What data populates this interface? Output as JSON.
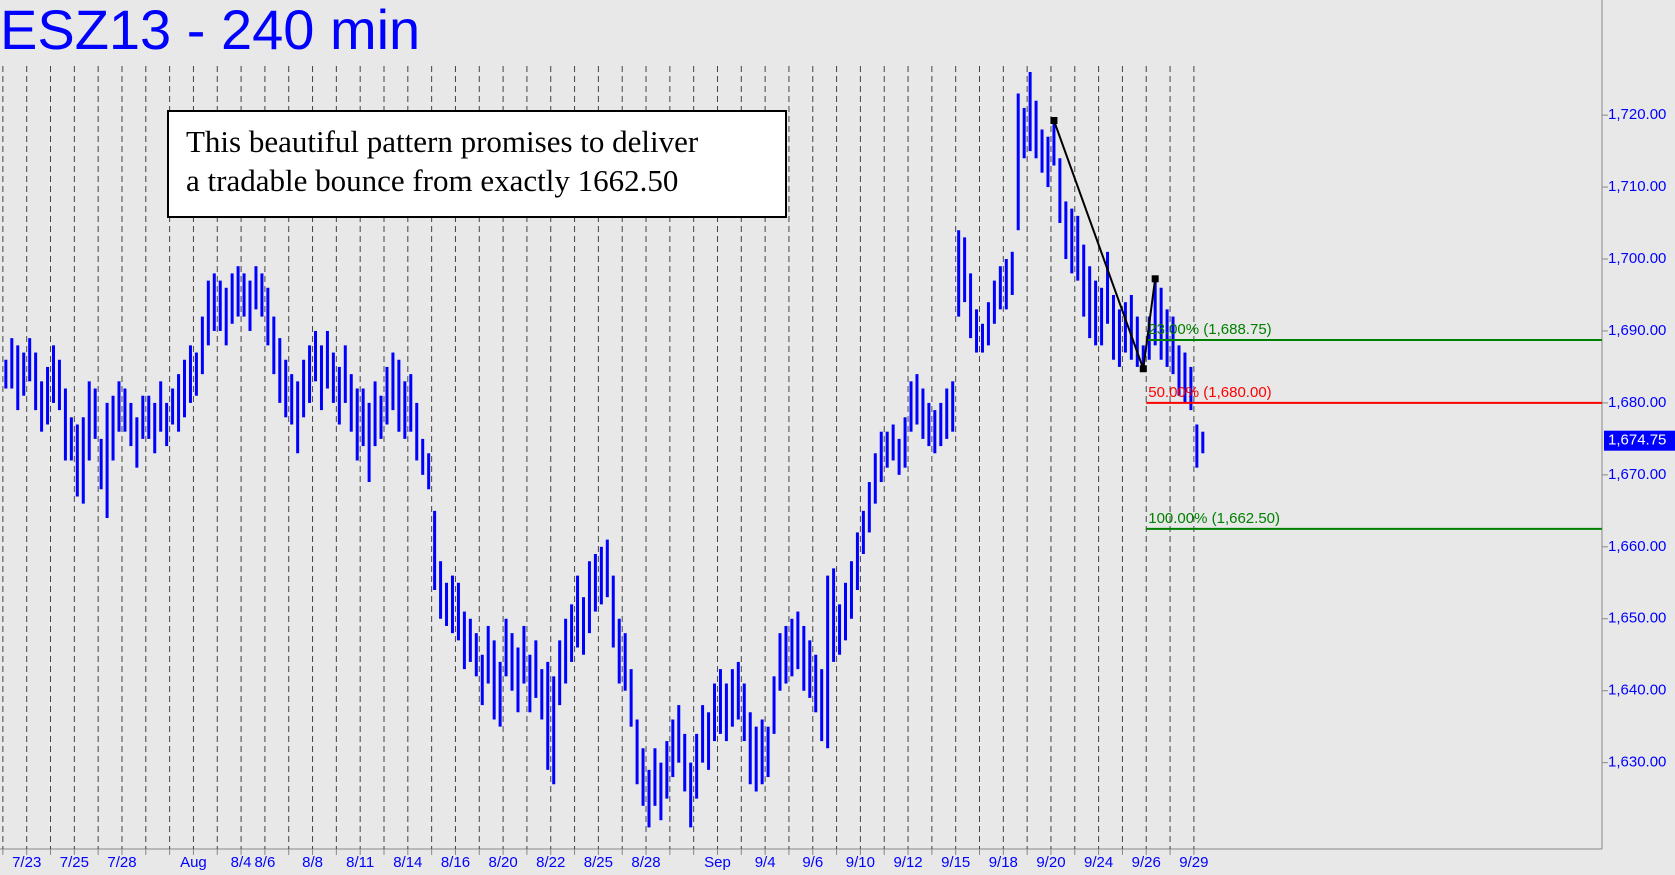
{
  "chart_data": {
    "type": "ohlc",
    "title": "ESZ13 - 240 min",
    "annotation": [
      "This beautiful pattern promises to deliver",
      "a tradable bounce from exactly 1662.50"
    ],
    "categories": [
      null,
      "7/23",
      null,
      "7/25",
      null,
      "7/28",
      null,
      null,
      "Aug",
      null,
      "8/4",
      "8/6",
      null,
      "8/8",
      null,
      "8/11",
      null,
      "8/14",
      null,
      "8/16",
      null,
      "8/20",
      null,
      "8/22",
      null,
      "8/25",
      null,
      "8/28",
      null,
      null,
      "Sep",
      null,
      "9/4",
      null,
      "9/6",
      null,
      "9/10",
      null,
      "9/12",
      null,
      "9/15",
      null,
      "9/18",
      null,
      "9/20",
      null,
      "9/24",
      null,
      "9/26",
      null,
      "9/29"
    ],
    "high": [
      [
        1686,
        1689,
        1688,
        1687
      ],
      [
        1689,
        1687,
        1683,
        1685
      ],
      [
        1688,
        1686,
        1682,
        1678
      ],
      [
        1677,
        1678,
        1683,
        1682
      ],
      [
        1675,
        1680,
        1681,
        1683
      ],
      [
        1682,
        1680,
        1678,
        1681
      ],
      [
        1681,
        1680,
        1683,
        1680
      ],
      [
        1682,
        1684,
        1686,
        1688
      ],
      [
        1687,
        1692,
        1697,
        1698
      ],
      [
        1697,
        1696,
        1698,
        1699
      ],
      [
        1698,
        1697,
        1699,
        1698
      ],
      [
        1696,
        1692,
        1689,
        1686
      ],
      [
        1684,
        1683,
        1686,
        1688
      ],
      [
        1690,
        1688,
        1690,
        1687
      ],
      [
        1685,
        1688,
        1684,
        1682
      ],
      [
        1682,
        1680,
        1683,
        1681
      ],
      [
        1685,
        1687,
        1686,
        1683
      ],
      [
        1684,
        1680,
        1675,
        1673
      ],
      [
        1665,
        1658,
        1655,
        1656
      ],
      [
        1655,
        1651,
        1650,
        1648
      ],
      [
        1645,
        1649,
        1647,
        1644
      ],
      [
        1650,
        1648,
        1646,
        1649
      ],
      [
        1645,
        1647,
        1643,
        1644
      ],
      [
        1642,
        1647,
        1650,
        1652
      ],
      [
        1656,
        1653,
        1658,
        1659
      ],
      [
        1660,
        1661,
        1656,
        1650
      ],
      [
        1648,
        1643,
        1636,
        1632
      ],
      [
        1629,
        1632,
        1630,
        1633
      ],
      [
        1636,
        1638,
        1634,
        1630
      ],
      [
        1634,
        1638,
        1637,
        1641
      ],
      [
        1643,
        1641,
        1643,
        1644
      ],
      [
        1641,
        1637,
        1635,
        1636
      ],
      [
        1635,
        1642,
        1648,
        1649
      ],
      [
        1650,
        1651,
        1649,
        1647
      ],
      [
        1645,
        1643,
        1656,
        1657
      ],
      [
        1652,
        1655,
        1658,
        1662
      ],
      [
        1665,
        1669,
        1673,
        1676
      ],
      [
        1676,
        1677,
        1675,
        1678
      ],
      [
        1683,
        1684,
        1682,
        1680
      ],
      [
        1679,
        1680,
        1682,
        1683
      ],
      [
        1704,
        1703,
        1698,
        1693
      ],
      [
        1691,
        1694,
        1697,
        1699
      ],
      [
        1700,
        1701,
        1723,
        1721
      ],
      [
        1726,
        1722,
        1718,
        1717
      ],
      [
        1719.25,
        1714,
        1708,
        1707
      ],
      [
        1706,
        1702,
        1699,
        1697
      ],
      [
        1696,
        1701,
        1695,
        1693
      ],
      [
        1694,
        1695,
        1692,
        1688
      ],
      [
        1692,
        1697.25,
        1696,
        1693
      ],
      [
        1692,
        1688,
        1687,
        1685
      ],
      [
        1677,
        1676
      ]
    ],
    "low": [
      [
        1682,
        1682,
        1679,
        1681
      ],
      [
        1683,
        1679,
        1676,
        1677
      ],
      [
        1680,
        1679,
        1672,
        1672
      ],
      [
        1667,
        1666,
        1672,
        1675
      ],
      [
        1668,
        1664,
        1672,
        1676
      ],
      [
        1676,
        1674,
        1671,
        1675
      ],
      [
        1675,
        1673,
        1676,
        1674
      ],
      [
        1677,
        1676,
        1678,
        1680
      ],
      [
        1681,
        1684,
        1688,
        1690
      ],
      [
        1690,
        1688,
        1691,
        1692
      ],
      [
        1692,
        1690,
        1693,
        1692
      ],
      [
        1688,
        1684,
        1680,
        1678
      ],
      [
        1677,
        1673,
        1678,
        1680
      ],
      [
        1683,
        1679,
        1682,
        1680
      ],
      [
        1677,
        1680,
        1676,
        1672
      ],
      [
        1674,
        1669,
        1674,
        1675
      ],
      [
        1677,
        1679,
        1676,
        1675
      ],
      [
        1676,
        1672,
        1670,
        1668
      ],
      [
        1654,
        1650,
        1649,
        1648
      ],
      [
        1647,
        1643,
        1644,
        1642
      ],
      [
        1638,
        1641,
        1636,
        1635
      ],
      [
        1642,
        1640,
        1637,
        1641
      ],
      [
        1637,
        1639,
        1636,
        1629
      ],
      [
        1627,
        1638,
        1641,
        1644
      ],
      [
        1646,
        1645,
        1648,
        1651
      ],
      [
        1652,
        1653,
        1646,
        1641
      ],
      [
        1640,
        1635,
        1627,
        1624
      ],
      [
        1621,
        1624,
        1622,
        1625
      ],
      [
        1628,
        1630,
        1626,
        1621
      ],
      [
        1625,
        1630,
        1629,
        1633
      ],
      [
        1634,
        1633,
        1635,
        1636
      ],
      [
        1633,
        1627,
        1626,
        1627
      ],
      [
        1628,
        1634,
        1640,
        1641
      ],
      [
        1642,
        1643,
        1640,
        1639
      ],
      [
        1637,
        1633,
        1632,
        1644
      ],
      [
        1645,
        1647,
        1650,
        1654
      ],
      [
        1659,
        1662,
        1666,
        1669
      ],
      [
        1671,
        1672,
        1670,
        1671
      ],
      [
        1676,
        1677,
        1675,
        1674
      ],
      [
        1673,
        1674,
        1675,
        1676
      ],
      [
        1692,
        1694,
        1689,
        1687
      ],
      [
        1687,
        1688,
        1691,
        1693
      ],
      [
        1693,
        1695,
        1704,
        1714
      ],
      [
        1715,
        1714,
        1712,
        1710
      ],
      [
        1713,
        1705,
        1700,
        1698
      ],
      [
        1697,
        1692,
        1689,
        1688
      ],
      [
        1688,
        1691,
        1686,
        1685
      ],
      [
        1687,
        1686,
        1685,
        1684.75
      ],
      [
        1686,
        1688,
        1686,
        1685
      ],
      [
        1684,
        1681,
        1680,
        1679
      ],
      [
        1671,
        1673
      ]
    ],
    "color": "#0000ff",
    "ylim": [
      1618,
      1736
    ],
    "yticks": [
      {
        "value": 1630,
        "label": "1,630.00"
      },
      {
        "value": 1640,
        "label": "1,640.00"
      },
      {
        "value": 1650,
        "label": "1,650.00"
      },
      {
        "value": 1660,
        "label": "1,660.00"
      },
      {
        "value": 1670,
        "label": "1,670.00"
      },
      {
        "value": 1680,
        "label": "1,680.00"
      },
      {
        "value": 1690,
        "label": "1,690.00"
      },
      {
        "value": 1700,
        "label": "1,700.00"
      },
      {
        "value": 1710,
        "label": "1,710.00"
      },
      {
        "value": 1720,
        "label": "1,720.00"
      }
    ],
    "last": {
      "value": 1674.75,
      "label": "1,674.75"
    },
    "levels": [
      {
        "value": 1688.75,
        "label": "23.00% (1,688.75)",
        "color": "#008000"
      },
      {
        "value": 1680,
        "label": "50.00% (1,680.00)",
        "color": "#ff0000"
      },
      {
        "value": 1662.5,
        "label": "100.00% (1,662.50)",
        "color": "#008000"
      }
    ],
    "pattern": {
      "values": [
        1719.25,
        1684.75,
        1697.25
      ],
      "color": "#000000"
    },
    "grid": true
  }
}
